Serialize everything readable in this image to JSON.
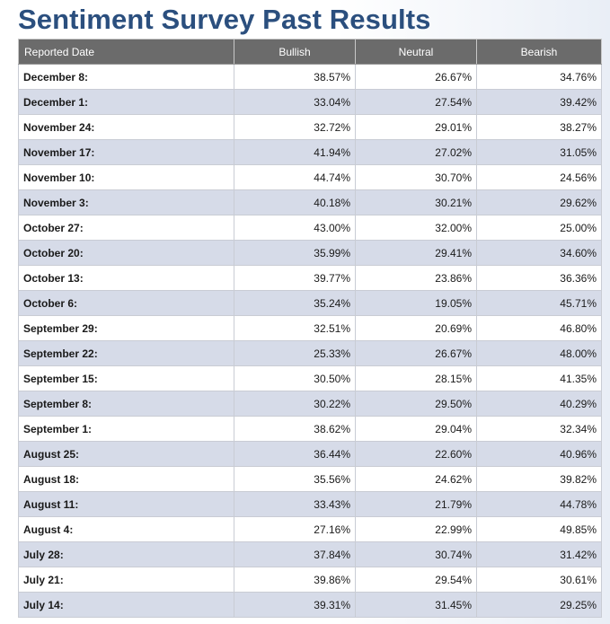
{
  "page": {
    "title": "Sentiment Survey Past Results"
  },
  "table": {
    "headers": [
      "Reported Date",
      "Bullish",
      "Neutral",
      "Bearish"
    ],
    "rows": [
      {
        "date": "December 8:",
        "bullish": "38.57%",
        "neutral": "26.67%",
        "bearish": "34.76%"
      },
      {
        "date": "December 1:",
        "bullish": "33.04%",
        "neutral": "27.54%",
        "bearish": "39.42%"
      },
      {
        "date": "November 24:",
        "bullish": "32.72%",
        "neutral": "29.01%",
        "bearish": "38.27%"
      },
      {
        "date": "November 17:",
        "bullish": "41.94%",
        "neutral": "27.02%",
        "bearish": "31.05%"
      },
      {
        "date": "November 10:",
        "bullish": "44.74%",
        "neutral": "30.70%",
        "bearish": "24.56%"
      },
      {
        "date": "November 3:",
        "bullish": "40.18%",
        "neutral": "30.21%",
        "bearish": "29.62%"
      },
      {
        "date": "October 27:",
        "bullish": "43.00%",
        "neutral": "32.00%",
        "bearish": "25.00%"
      },
      {
        "date": "October 20:",
        "bullish": "35.99%",
        "neutral": "29.41%",
        "bearish": "34.60%"
      },
      {
        "date": "October 13:",
        "bullish": "39.77%",
        "neutral": "23.86%",
        "bearish": "36.36%"
      },
      {
        "date": "October 6:",
        "bullish": "35.24%",
        "neutral": "19.05%",
        "bearish": "45.71%"
      },
      {
        "date": "September 29:",
        "bullish": "32.51%",
        "neutral": "20.69%",
        "bearish": "46.80%"
      },
      {
        "date": "September 22:",
        "bullish": "25.33%",
        "neutral": "26.67%",
        "bearish": "48.00%"
      },
      {
        "date": "September 15:",
        "bullish": "30.50%",
        "neutral": "28.15%",
        "bearish": "41.35%"
      },
      {
        "date": "September 8:",
        "bullish": "30.22%",
        "neutral": "29.50%",
        "bearish": "40.29%"
      },
      {
        "date": "September 1:",
        "bullish": "38.62%",
        "neutral": "29.04%",
        "bearish": "32.34%"
      },
      {
        "date": "August 25:",
        "bullish": "36.44%",
        "neutral": "22.60%",
        "bearish": "40.96%"
      },
      {
        "date": "August 18:",
        "bullish": "35.56%",
        "neutral": "24.62%",
        "bearish": "39.82%"
      },
      {
        "date": "August 11:",
        "bullish": "33.43%",
        "neutral": "21.79%",
        "bearish": "44.78%"
      },
      {
        "date": "August 4:",
        "bullish": "27.16%",
        "neutral": "22.99%",
        "bearish": "49.85%"
      },
      {
        "date": "July 28:",
        "bullish": "37.84%",
        "neutral": "30.74%",
        "bearish": "31.42%"
      },
      {
        "date": "July 21:",
        "bullish": "39.86%",
        "neutral": "29.54%",
        "bearish": "30.61%"
      },
      {
        "date": "July 14:",
        "bullish": "39.31%",
        "neutral": "31.45%",
        "bearish": "29.25%"
      }
    ]
  },
  "colors": {
    "title": "#2b4f7e",
    "header_bg": "#6b6b6b",
    "header_text": "#ffffff",
    "row_alt": "#d6dbe8",
    "row_base": "#ffffff"
  }
}
